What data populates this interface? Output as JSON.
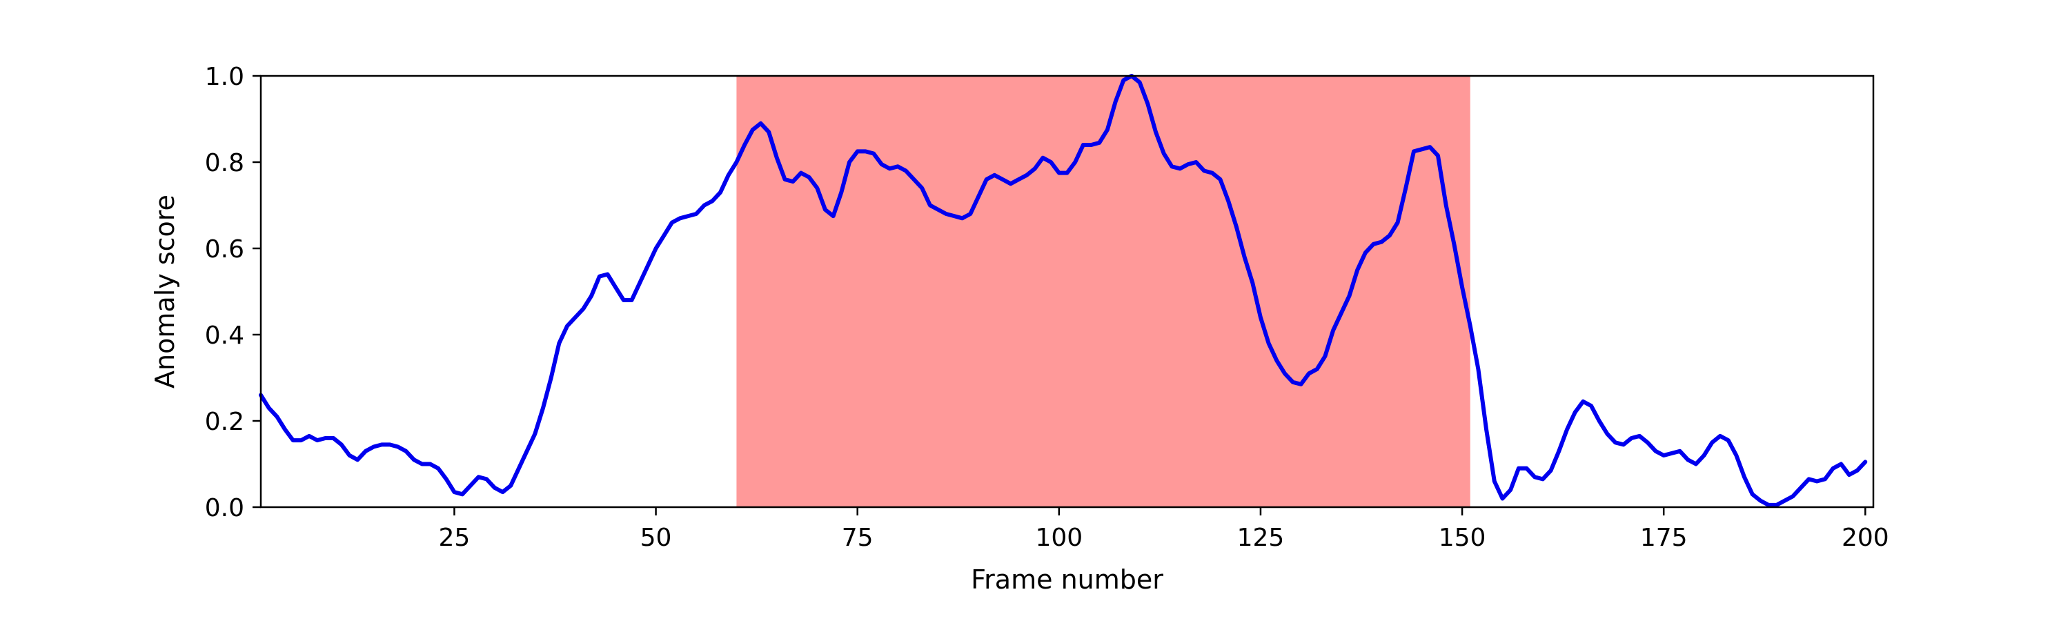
{
  "chart_data": {
    "type": "line",
    "title": "",
    "xlabel": "Frame number",
    "ylabel": "Anomaly score",
    "xlim": [
      1,
      201
    ],
    "ylim": [
      0,
      1
    ],
    "xticks": [
      25,
      50,
      75,
      100,
      125,
      150,
      175,
      200
    ],
    "yticks": [
      0.0,
      0.2,
      0.4,
      0.6,
      0.8,
      1.0
    ],
    "ytick_labels": [
      "0.0",
      "0.2",
      "0.4",
      "0.6",
      "0.8",
      "1.0"
    ],
    "grid": false,
    "highlight_region": {
      "x_start": 60,
      "x_end": 151,
      "color": "#ff9999"
    },
    "series": [
      {
        "color": "#0000ee",
        "points": [
          [
            1,
            0.26
          ],
          [
            2,
            0.23
          ],
          [
            3,
            0.21
          ],
          [
            4,
            0.18
          ],
          [
            5,
            0.155
          ],
          [
            6,
            0.155
          ],
          [
            7,
            0.165
          ],
          [
            8,
            0.155
          ],
          [
            9,
            0.16
          ],
          [
            10,
            0.16
          ],
          [
            11,
            0.145
          ],
          [
            12,
            0.12
          ],
          [
            13,
            0.11
          ],
          [
            14,
            0.13
          ],
          [
            15,
            0.14
          ],
          [
            16,
            0.145
          ],
          [
            17,
            0.145
          ],
          [
            18,
            0.14
          ],
          [
            19,
            0.13
          ],
          [
            20,
            0.11
          ],
          [
            21,
            0.1
          ],
          [
            22,
            0.1
          ],
          [
            23,
            0.09
          ],
          [
            24,
            0.065
          ],
          [
            25,
            0.035
          ],
          [
            26,
            0.03
          ],
          [
            27,
            0.05
          ],
          [
            28,
            0.07
          ],
          [
            29,
            0.065
          ],
          [
            30,
            0.045
          ],
          [
            31,
            0.035
          ],
          [
            32,
            0.05
          ],
          [
            33,
            0.09
          ],
          [
            34,
            0.13
          ],
          [
            35,
            0.17
          ],
          [
            36,
            0.23
          ],
          [
            37,
            0.3
          ],
          [
            38,
            0.38
          ],
          [
            39,
            0.42
          ],
          [
            40,
            0.44
          ],
          [
            41,
            0.46
          ],
          [
            42,
            0.49
          ],
          [
            43,
            0.535
          ],
          [
            44,
            0.54
          ],
          [
            45,
            0.51
          ],
          [
            46,
            0.48
          ],
          [
            47,
            0.48
          ],
          [
            48,
            0.52
          ],
          [
            49,
            0.56
          ],
          [
            50,
            0.6
          ],
          [
            51,
            0.63
          ],
          [
            52,
            0.66
          ],
          [
            53,
            0.67
          ],
          [
            54,
            0.675
          ],
          [
            55,
            0.68
          ],
          [
            56,
            0.7
          ],
          [
            57,
            0.71
          ],
          [
            58,
            0.73
          ],
          [
            59,
            0.77
          ],
          [
            60,
            0.8
          ],
          [
            61,
            0.84
          ],
          [
            62,
            0.875
          ],
          [
            63,
            0.89
          ],
          [
            64,
            0.87
          ],
          [
            65,
            0.81
          ],
          [
            66,
            0.76
          ],
          [
            67,
            0.755
          ],
          [
            68,
            0.775
          ],
          [
            69,
            0.765
          ],
          [
            70,
            0.74
          ],
          [
            71,
            0.69
          ],
          [
            72,
            0.675
          ],
          [
            73,
            0.73
          ],
          [
            74,
            0.8
          ],
          [
            75,
            0.825
          ],
          [
            76,
            0.825
          ],
          [
            77,
            0.82
          ],
          [
            78,
            0.795
          ],
          [
            79,
            0.785
          ],
          [
            80,
            0.79
          ],
          [
            81,
            0.78
          ],
          [
            82,
            0.76
          ],
          [
            83,
            0.74
          ],
          [
            84,
            0.7
          ],
          [
            85,
            0.69
          ],
          [
            86,
            0.68
          ],
          [
            87,
            0.675
          ],
          [
            88,
            0.67
          ],
          [
            89,
            0.68
          ],
          [
            90,
            0.72
          ],
          [
            91,
            0.76
          ],
          [
            92,
            0.77
          ],
          [
            93,
            0.76
          ],
          [
            94,
            0.75
          ],
          [
            95,
            0.76
          ],
          [
            96,
            0.77
          ],
          [
            97,
            0.785
          ],
          [
            98,
            0.81
          ],
          [
            99,
            0.8
          ],
          [
            100,
            0.775
          ],
          [
            101,
            0.775
          ],
          [
            102,
            0.8
          ],
          [
            103,
            0.84
          ],
          [
            104,
            0.84
          ],
          [
            105,
            0.845
          ],
          [
            106,
            0.875
          ],
          [
            107,
            0.94
          ],
          [
            108,
            0.99
          ],
          [
            109,
            1.0
          ],
          [
            110,
            0.985
          ],
          [
            111,
            0.935
          ],
          [
            112,
            0.87
          ],
          [
            113,
            0.82
          ],
          [
            114,
            0.79
          ],
          [
            115,
            0.785
          ],
          [
            116,
            0.795
          ],
          [
            117,
            0.8
          ],
          [
            118,
            0.78
          ],
          [
            119,
            0.775
          ],
          [
            120,
            0.76
          ],
          [
            121,
            0.71
          ],
          [
            122,
            0.65
          ],
          [
            123,
            0.58
          ],
          [
            124,
            0.52
          ],
          [
            125,
            0.44
          ],
          [
            126,
            0.38
          ],
          [
            127,
            0.34
          ],
          [
            128,
            0.31
          ],
          [
            129,
            0.29
          ],
          [
            130,
            0.285
          ],
          [
            131,
            0.31
          ],
          [
            132,
            0.32
          ],
          [
            133,
            0.35
          ],
          [
            134,
            0.41
          ],
          [
            135,
            0.45
          ],
          [
            136,
            0.49
          ],
          [
            137,
            0.55
          ],
          [
            138,
            0.59
          ],
          [
            139,
            0.61
          ],
          [
            140,
            0.615
          ],
          [
            141,
            0.63
          ],
          [
            142,
            0.66
          ],
          [
            143,
            0.74
          ],
          [
            144,
            0.825
          ],
          [
            145,
            0.83
          ],
          [
            146,
            0.835
          ],
          [
            147,
            0.815
          ],
          [
            148,
            0.7
          ],
          [
            149,
            0.61
          ],
          [
            150,
            0.51
          ],
          [
            151,
            0.42
          ],
          [
            152,
            0.32
          ],
          [
            153,
            0.18
          ],
          [
            154,
            0.06
          ],
          [
            155,
            0.02
          ],
          [
            156,
            0.04
          ],
          [
            157,
            0.09
          ],
          [
            158,
            0.09
          ],
          [
            159,
            0.07
          ],
          [
            160,
            0.065
          ],
          [
            161,
            0.085
          ],
          [
            162,
            0.13
          ],
          [
            163,
            0.18
          ],
          [
            164,
            0.22
          ],
          [
            165,
            0.245
          ],
          [
            166,
            0.235
          ],
          [
            167,
            0.2
          ],
          [
            168,
            0.17
          ],
          [
            169,
            0.15
          ],
          [
            170,
            0.145
          ],
          [
            171,
            0.16
          ],
          [
            172,
            0.165
          ],
          [
            173,
            0.15
          ],
          [
            174,
            0.13
          ],
          [
            175,
            0.12
          ],
          [
            176,
            0.125
          ],
          [
            177,
            0.13
          ],
          [
            178,
            0.11
          ],
          [
            179,
            0.1
          ],
          [
            180,
            0.12
          ],
          [
            181,
            0.15
          ],
          [
            182,
            0.165
          ],
          [
            183,
            0.155
          ],
          [
            184,
            0.12
          ],
          [
            185,
            0.07
          ],
          [
            186,
            0.03
          ],
          [
            187,
            0.015
          ],
          [
            188,
            0.005
          ],
          [
            189,
            0.005
          ],
          [
            190,
            0.015
          ],
          [
            191,
            0.025
          ],
          [
            192,
            0.045
          ],
          [
            193,
            0.065
          ],
          [
            194,
            0.06
          ],
          [
            195,
            0.065
          ],
          [
            196,
            0.09
          ],
          [
            197,
            0.1
          ],
          [
            198,
            0.075
          ],
          [
            199,
            0.085
          ],
          [
            200,
            0.105
          ]
        ]
      }
    ]
  }
}
